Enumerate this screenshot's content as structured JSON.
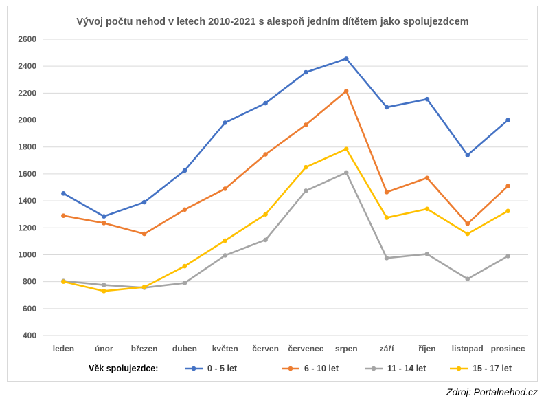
{
  "chart_data": {
    "type": "line",
    "title": "Vývoj počtu nehod v letech 2010-2021 s alespoň jedním dítětem jako spolujezdcem",
    "xlabel": "",
    "ylabel": "",
    "categories": [
      "leden",
      "únor",
      "březen",
      "duben",
      "květen",
      "červen",
      "červenec",
      "srpen",
      "září",
      "říjen",
      "listopad",
      "prosinec"
    ],
    "ylim": [
      400,
      2600
    ],
    "yticks": [
      400,
      600,
      800,
      1000,
      1200,
      1400,
      1600,
      1800,
      2000,
      2200,
      2400,
      2600
    ],
    "grid": true,
    "legend_title": "Věk spolujezdce:",
    "legend_position": "bottom",
    "series": [
      {
        "name": "0 - 5 let",
        "color": "#4472c4",
        "values": [
          1455,
          1285,
          1390,
          1625,
          1980,
          2125,
          2355,
          2455,
          2095,
          2155,
          1740,
          2000
        ]
      },
      {
        "name": "6 - 10 let",
        "color": "#ed7d31",
        "values": [
          1290,
          1235,
          1155,
          1335,
          1490,
          1745,
          1965,
          2215,
          1465,
          1570,
          1230,
          1510
        ]
      },
      {
        "name": "11 - 14 let",
        "color": "#a5a5a5",
        "values": [
          805,
          775,
          755,
          790,
          995,
          1110,
          1475,
          1610,
          975,
          1005,
          820,
          990
        ]
      },
      {
        "name": "15 - 17 let",
        "color": "#ffc000",
        "values": [
          800,
          730,
          760,
          915,
          1105,
          1300,
          1650,
          1785,
          1275,
          1340,
          1155,
          1325
        ]
      }
    ]
  },
  "source_note": "Zdroj: Portalnehod.cz"
}
